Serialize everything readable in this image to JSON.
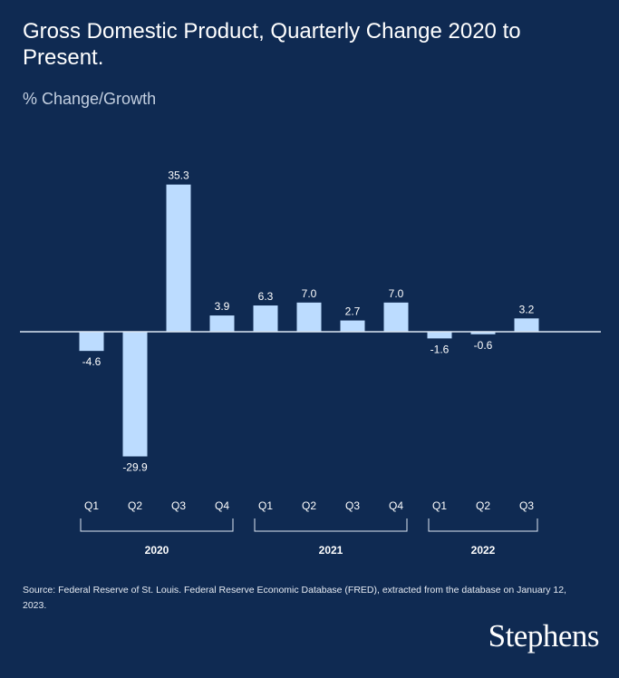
{
  "title": "Gross Domestic Product, Quarterly Change 2020 to Present.",
  "subtitle": "% Change/Growth",
  "source": "Source: Federal Reserve of St. Louis. Federal Reserve Economic Database (FRED), extracted from the database on January 12, 2023.",
  "logo": "Stephens",
  "colors": {
    "background": "#0f2a52",
    "bar": "#bcdcff",
    "axis": "#dce6f2",
    "text": "#ffffff"
  },
  "chart_data": {
    "type": "bar",
    "categories": [
      "Q1",
      "Q2",
      "Q3",
      "Q4",
      "Q1",
      "Q2",
      "Q3",
      "Q4",
      "Q1",
      "Q2",
      "Q3"
    ],
    "values": [
      -4.6,
      -29.9,
      35.3,
      3.9,
      6.3,
      7.0,
      2.7,
      7.0,
      -1.6,
      -0.6,
      3.2
    ],
    "value_labels": [
      "-4.6",
      "-29.9",
      "35.3",
      "3.9",
      "6.3",
      "7.0",
      "2.7",
      "7.0",
      "-1.6",
      "-0.6",
      "3.2"
    ],
    "groups": [
      {
        "label": "2020",
        "start": 0,
        "end": 3
      },
      {
        "label": "2021",
        "start": 4,
        "end": 7
      },
      {
        "label": "2022",
        "start": 8,
        "end": 10
      }
    ],
    "ylim": [
      -29.9,
      35.3
    ],
    "ylabel": "% Change/Growth",
    "grid": false,
    "legend": "none"
  }
}
